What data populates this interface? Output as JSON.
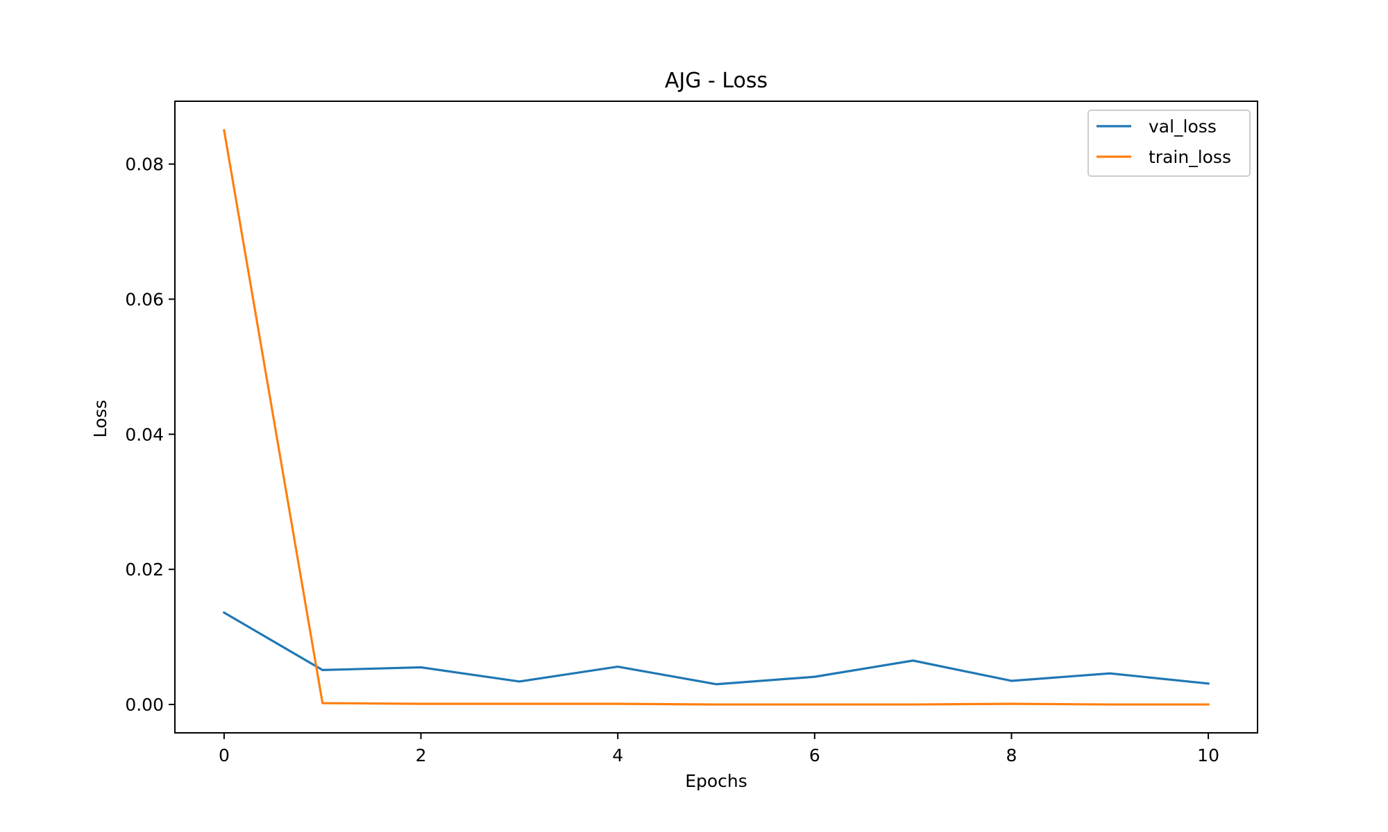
{
  "chart_data": {
    "type": "line",
    "title": "AJG - Loss",
    "xlabel": "Epochs",
    "ylabel": "Loss",
    "x": [
      0,
      1,
      2,
      3,
      4,
      5,
      6,
      7,
      8,
      9,
      10
    ],
    "xlim": [
      -0.5,
      10.5
    ],
    "ylim": [
      -0.0042,
      0.0893
    ],
    "x_ticks": [
      0,
      2,
      4,
      6,
      8,
      10
    ],
    "x_tick_labels": [
      "0",
      "2",
      "4",
      "6",
      "8",
      "10"
    ],
    "y_ticks": [
      0.0,
      0.02,
      0.04,
      0.06,
      0.08
    ],
    "y_tick_labels": [
      "0.00",
      "0.02",
      "0.04",
      "0.06",
      "0.08"
    ],
    "grid": false,
    "legend_position": "top-right",
    "series": [
      {
        "name": "val_loss",
        "color": "#1f77b4",
        "values": [
          0.0136,
          0.0051,
          0.0055,
          0.0034,
          0.0056,
          0.003,
          0.0041,
          0.0065,
          0.0035,
          0.0046,
          0.0031
        ]
      },
      {
        "name": "train_loss",
        "color": "#ff7f0e",
        "values": [
          0.085,
          0.0002,
          0.0001,
          0.0001,
          0.0001,
          0.0,
          0.0,
          0.0,
          0.0001,
          0.0,
          0.0
        ]
      }
    ]
  }
}
